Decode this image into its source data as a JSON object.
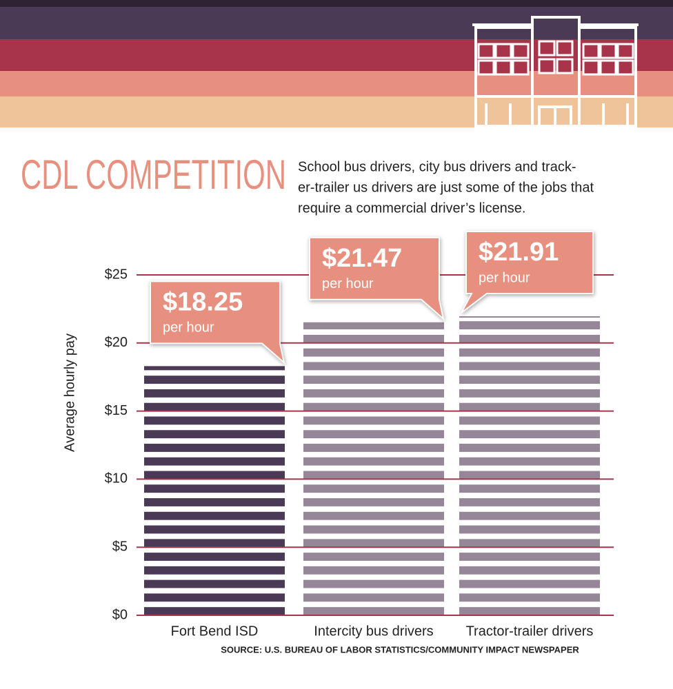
{
  "chart_data": {
    "type": "bar",
    "title": "CDL COMPETITION",
    "subtitle": [
      "School bus drivers, city bus drivers and track-",
      "er-trailer us drivers are just some of the jobs that",
      "require a commercial driver’s license."
    ],
    "y_label": "Average hourly pay",
    "categories": [
      "Fort Bend ISD",
      "Intercity bus drivers",
      "Tractor-trailer drivers"
    ],
    "values": [
      18.25,
      21.47,
      21.91
    ],
    "value_labels": [
      "$18.25",
      "$21.47",
      "$21.91"
    ],
    "unit_label": "per hour",
    "colors": [
      "#4a3a55",
      "#958797",
      "#958797"
    ],
    "callout_color": "#e8907f",
    "grid_color": "#a8344c",
    "ylim": [
      0,
      25
    ],
    "yticks": [
      {
        "value": 0,
        "label": "$0"
      },
      {
        "value": 5,
        "label": "$5"
      },
      {
        "value": 10,
        "label": "$10"
      },
      {
        "value": 15,
        "label": "$15"
      },
      {
        "value": 20,
        "label": "$20"
      },
      {
        "value": 25,
        "label": "$25"
      }
    ],
    "grid": true,
    "source": "SOURCE: U.S. BUREAU OF LABOR STATISTICS/COMMUNITY IMPACT NEWSPAPER"
  }
}
